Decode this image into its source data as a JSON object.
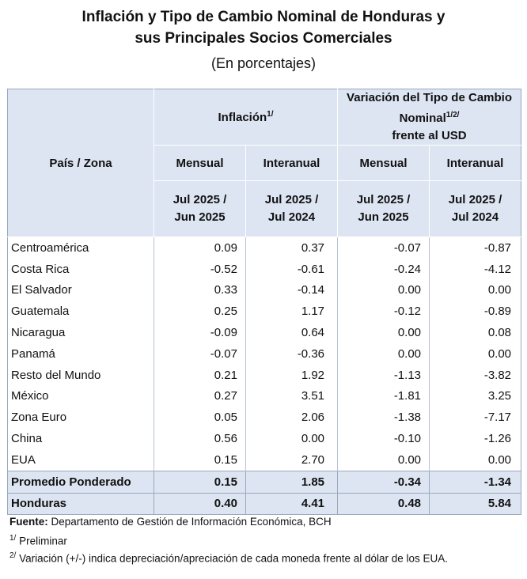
{
  "title_line1": "Inflación y Tipo de Cambio Nominal de Honduras y",
  "title_line2": "sus Principales Socios Comerciales",
  "subtitle": "(En porcentajes)",
  "header": {
    "pais": "País / Zona",
    "inflacion": "Inflación",
    "inflacion_sup": "1/",
    "variacion_line1": "Variación del Tipo de Cambio",
    "variacion_line2": "Nominal",
    "variacion_sup": "1/2/",
    "variacion_line3": "frente al USD",
    "mensual": "Mensual",
    "interanual": "Interanual",
    "periodo_mensual_1": "Jul 2025 /",
    "periodo_mensual_2": "Jun 2025",
    "periodo_interanual_1": "Jul 2025 /",
    "periodo_interanual_2": "Jul 2024"
  },
  "rows": [
    {
      "label": "Centroamérica",
      "v": [
        "0.09",
        "0.37",
        "-0.07",
        "-0.87"
      ]
    },
    {
      "label": "Costa Rica",
      "v": [
        "-0.52",
        "-0.61",
        "-0.24",
        "-4.12"
      ]
    },
    {
      "label": "El Salvador",
      "v": [
        "0.33",
        "-0.14",
        "0.00",
        "0.00"
      ]
    },
    {
      "label": "Guatemala",
      "v": [
        "0.25",
        "1.17",
        "-0.12",
        "-0.89"
      ]
    },
    {
      "label": "Nicaragua",
      "v": [
        "-0.09",
        "0.64",
        "0.00",
        "0.08"
      ]
    },
    {
      "label": "Panamá",
      "v": [
        "-0.07",
        "-0.36",
        "0.00",
        "0.00"
      ]
    },
    {
      "label": "Resto del Mundo",
      "v": [
        "0.21",
        "1.92",
        "-1.13",
        "-3.82"
      ]
    },
    {
      "label": "México",
      "v": [
        "0.27",
        "3.51",
        "-1.81",
        "3.25"
      ]
    },
    {
      "label": "Zona Euro",
      "v": [
        "0.05",
        "2.06",
        "-1.38",
        "-7.17"
      ]
    },
    {
      "label": "China",
      "v": [
        "0.56",
        "0.00",
        "-0.10",
        "-1.26"
      ]
    },
    {
      "label": "EUA",
      "v": [
        "0.15",
        "2.70",
        "0.00",
        "0.00"
      ]
    }
  ],
  "summary_rows": [
    {
      "label": "Promedio Ponderado",
      "v": [
        "0.15",
        "1.85",
        "-0.34",
        "-1.34"
      ]
    },
    {
      "label": "Honduras",
      "v": [
        "0.40",
        "4.41",
        "0.48",
        "5.84"
      ]
    }
  ],
  "footnotes": {
    "fuente_label": "Fuente:",
    "fuente_text": " Departamento de Gestión de Información Económica, BCH",
    "n1_sup": "1/",
    "n1_text": " Preliminar",
    "n2_sup": "2/",
    "n2_text": " Variación (+/-) indica depreciación/apreciación de cada moneda frente al dólar de los EUA."
  }
}
